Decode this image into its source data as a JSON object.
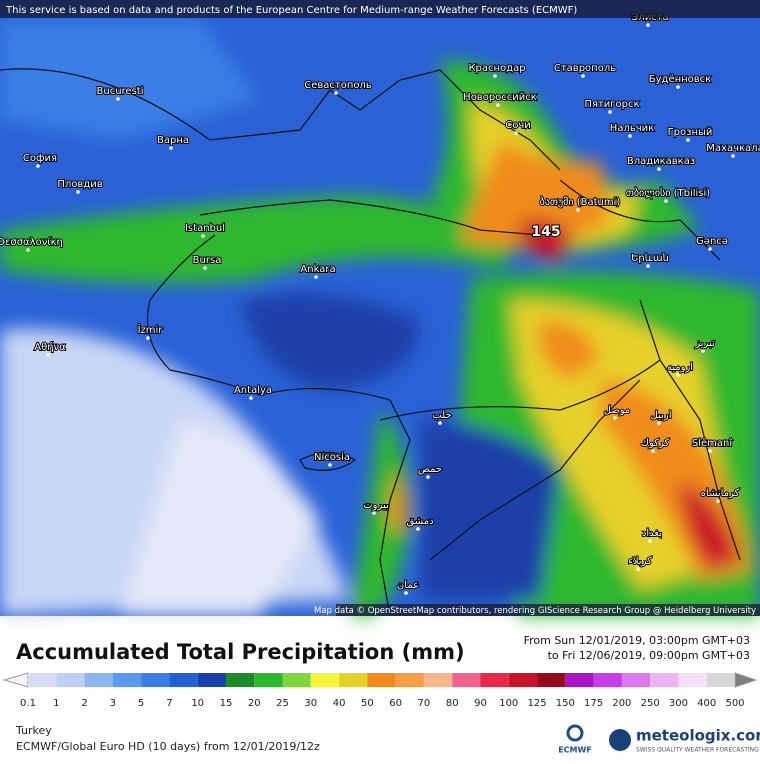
{
  "header": {
    "notice": "This service is based on data and products of the European Centre for Medium-range Weather Forecasts (ECMWF)"
  },
  "map": {
    "max_label": "145",
    "cities": [
      "Bucuresti",
      "Варна",
      "София",
      "Пловдив",
      "Θεσσαλονίκη",
      "Istanbul",
      "Bursa",
      "Ankara",
      "İzmir",
      "Αθήνα",
      "Antalya",
      "Nicosia",
      "Севастополь",
      "Краснодар",
      "Ставрополь",
      "Новороссийск",
      "Сочи",
      "Пятигорск",
      "Будённовск",
      "Нальчик",
      "Грозный",
      "Махачкала",
      "Владикавказ",
      "ბათუმი (Batumi)",
      "თბილისი (Tbilisi)",
      "Gəncə",
      "Элиста",
      "Երևան",
      "حلب",
      "حمص",
      "بيروت",
      "دمشق",
      "عمان",
      "موصل",
      "اربیل",
      "Slêmanî",
      "كركوك",
      "كرمانشاه",
      "بغداد",
      "كربلاء",
      "ارومیه",
      "تبریز"
    ],
    "attribution": "Map data © OpenStreetMap contributors, rendering GIScience Research Group @ Heidelberg University"
  },
  "title": "Accumulated Total Precipitation (mm)",
  "period": {
    "from": "From Sun 12/01/2019, 03:00pm GMT+03",
    "to": "to Fri 12/06/2019, 09:00pm GMT+03"
  },
  "legend": {
    "labels": [
      0.1,
      1,
      2,
      3,
      5,
      7,
      10,
      15,
      20,
      25,
      30,
      40,
      50,
      60,
      70,
      80,
      90,
      100,
      125,
      150,
      175,
      200,
      250,
      300,
      400,
      500
    ],
    "colors": [
      "#d8dcf4",
      "#bcd0f6",
      "#8cb4f0",
      "#5a9aee",
      "#3a7ee6",
      "#2460d4",
      "#1a3fa8",
      "#1e8a2a",
      "#2eb82e",
      "#7ed63a",
      "#f5f53a",
      "#e6d02a",
      "#f08c1e",
      "#f5a046",
      "#f4b88c",
      "#f0648c",
      "#e8284a",
      "#c81428",
      "#960a1a",
      "#aa14c8",
      "#c83ce6",
      "#dc78ee",
      "#ecb4f4",
      "#f4e0f8",
      "#d8d8d8"
    ]
  },
  "footer": {
    "region": "Turkey",
    "model": "ECMWF/Global Euro HD (10 days)  from  12/01/2019/12z",
    "brand": "meteologix.com",
    "slogan": "SWISS QUALITY WEATHER FORECASTING",
    "ecmwf": "ECMWF"
  }
}
